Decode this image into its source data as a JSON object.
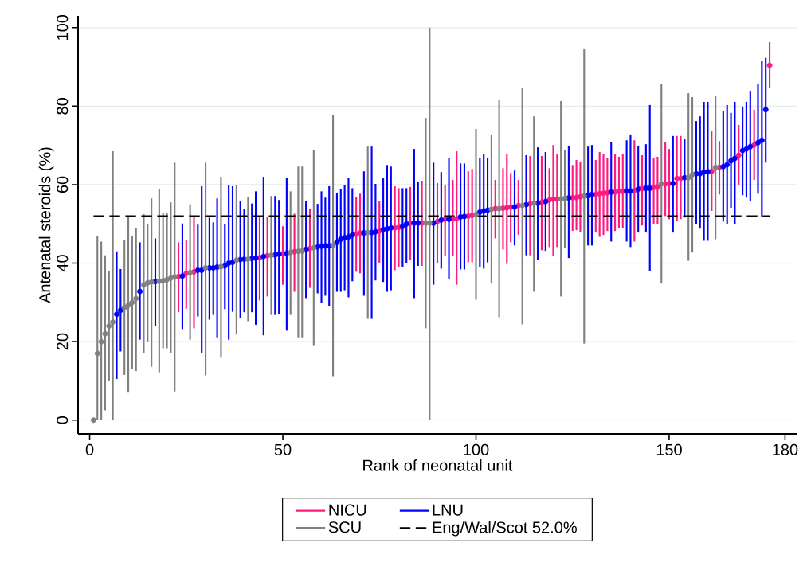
{
  "chart_data": {
    "type": "scatter",
    "xlabel": "Rank of neonatal unit",
    "ylabel": "Antenatal steroids (%)",
    "xlim": [
      -3,
      183
    ],
    "ylim": [
      -3.5,
      103
    ],
    "xticks": [
      0,
      50,
      100,
      150,
      180
    ],
    "yticks": [
      0,
      20,
      40,
      60,
      80,
      100
    ],
    "grid": "y",
    "marker": "circle",
    "legend": "bottom",
    "ref_lines": [
      {
        "axis": "y",
        "value": 52,
        "label": "Eng/Wal/Scot 52.0%",
        "color": "#000000",
        "line_style": "dashed"
      }
    ],
    "series": [
      {
        "name": "NICU",
        "color": "#ff1a80",
        "x": [
          23,
          25,
          27,
          44,
          46,
          50,
          53,
          57,
          69,
          70,
          75,
          79,
          80,
          83,
          86,
          90,
          92,
          94,
          95,
          98,
          99,
          105,
          107,
          108,
          109,
          111,
          114,
          117,
          119,
          120,
          121,
          125,
          126,
          127,
          131,
          132,
          133,
          134,
          136,
          137,
          138,
          141,
          143,
          146,
          147,
          149,
          150,
          152,
          153,
          161,
          163,
          168,
          172,
          176
        ],
        "values": [
          36.6,
          37.4,
          37.8,
          41.4,
          41.9,
          42.4,
          42.9,
          43.7,
          47.4,
          47.7,
          48.2,
          49,
          49.1,
          50.2,
          50.2,
          50.6,
          51.2,
          51.3,
          51.3,
          52,
          52.2,
          53.9,
          54,
          54.1,
          54.3,
          54.7,
          55.1,
          55.5,
          56.1,
          56.3,
          56.3,
          56.7,
          56.7,
          56.9,
          57.5,
          57.7,
          57.8,
          57.9,
          58.1,
          58.3,
          58.3,
          58.5,
          59,
          59.3,
          59.4,
          60.2,
          60.3,
          61.6,
          61.6,
          63.4,
          64.4,
          67.5,
          70.1,
          90.4
        ],
        "errors": [
          [
            27.5,
            45.3
          ],
          [
            28.4,
            46
          ],
          [
            23.4,
            51.8
          ],
          [
            30.5,
            51.8
          ],
          [
            31.5,
            51.8
          ],
          [
            34.5,
            49.4
          ],
          [
            32.7,
            52.6
          ],
          [
            33.7,
            53.7
          ],
          [
            37.8,
            56.9
          ],
          [
            37.4,
            57.7
          ],
          [
            40,
            55.9
          ],
          [
            38.2,
            59.6
          ],
          [
            39,
            59.1
          ],
          [
            40.8,
            59.4
          ],
          [
            39.3,
            61
          ],
          [
            40,
            60.4
          ],
          [
            41.9,
            59.9
          ],
          [
            41.9,
            61.2
          ],
          [
            34.5,
            68.5
          ],
          [
            40.2,
            63.4
          ],
          [
            40.2,
            64
          ],
          [
            46.3,
            61.2
          ],
          [
            43.5,
            64.2
          ],
          [
            39.8,
            67.7
          ],
          [
            45.3,
            63
          ],
          [
            47.2,
            61.2
          ],
          [
            42,
            67.3
          ],
          [
            43.3,
            67.3
          ],
          [
            44.1,
            64.2
          ],
          [
            41.9,
            70.1
          ],
          [
            44.1,
            67.7
          ],
          [
            48.2,
            65
          ],
          [
            48.4,
            66.3
          ],
          [
            48,
            65.9
          ],
          [
            47.8,
            66.3
          ],
          [
            46.7,
            68.3
          ],
          [
            47.2,
            67.7
          ],
          [
            48.2,
            66.7
          ],
          [
            48.2,
            67.9
          ],
          [
            49,
            67.1
          ],
          [
            49,
            67.7
          ],
          [
            45.5,
            71.3
          ],
          [
            49.6,
            67.5
          ],
          [
            50,
            66.7
          ],
          [
            50,
            67.1
          ],
          [
            52,
            70.9
          ],
          [
            51.2,
            69.1
          ],
          [
            50.8,
            72.4
          ],
          [
            51.2,
            72.4
          ],
          [
            53.3,
            73.6
          ],
          [
            57.5,
            71.1
          ],
          [
            59.8,
            75.2
          ],
          [
            61.2,
            79.1
          ],
          [
            84.6,
            96.3
          ]
        ]
      },
      {
        "name": "LNU",
        "color": "#0000ff",
        "x": [
          7,
          8,
          13,
          17,
          24,
          28,
          29,
          31,
          32,
          33,
          35,
          36,
          37,
          39,
          40,
          42,
          43,
          45,
          48,
          49,
          51,
          56,
          59,
          60,
          61,
          62,
          64,
          65,
          66,
          67,
          68,
          71,
          73,
          74,
          76,
          77,
          78,
          81,
          82,
          84,
          85,
          89,
          91,
          93,
          96,
          97,
          101,
          102,
          103,
          110,
          113,
          116,
          118,
          124,
          129,
          130,
          135,
          139,
          140,
          142,
          144,
          145,
          151,
          154,
          157,
          158,
          159,
          160,
          164,
          165,
          166,
          167,
          169,
          170,
          171,
          173,
          174,
          175
        ],
        "values": [
          27,
          28,
          32.8,
          35.3,
          36.7,
          38.2,
          38.2,
          38.8,
          38.8,
          39,
          39.3,
          40,
          40.2,
          40.9,
          41,
          41.2,
          41.3,
          41.7,
          42.1,
          42.3,
          42.5,
          43.5,
          44.1,
          44.3,
          44.4,
          44.4,
          45.3,
          46.1,
          46.5,
          46.7,
          47.2,
          47.7,
          47.8,
          48,
          48.6,
          48.8,
          49,
          49.4,
          50,
          50.2,
          50.2,
          50.2,
          51,
          51.2,
          51.8,
          51.9,
          53,
          53.3,
          53.5,
          54.3,
          54.9,
          55.3,
          55.7,
          56.6,
          57.2,
          57.5,
          58.1,
          58.4,
          58.4,
          58.9,
          59.1,
          59.1,
          60.3,
          61.8,
          62.8,
          62.8,
          63.2,
          63.3,
          64.6,
          65.1,
          66.1,
          66.7,
          68.7,
          69.1,
          69.7,
          70.7,
          71.3,
          79.1
        ],
        "errors": [
          [
            10.5,
            43
          ],
          [
            17.5,
            38.5
          ],
          [
            20.5,
            45.3
          ],
          [
            24,
            46.3
          ],
          [
            23.2,
            50.1
          ],
          [
            26.4,
            49.8
          ],
          [
            17,
            59.6
          ],
          [
            25.6,
            51.6
          ],
          [
            26.8,
            50.4
          ],
          [
            21.1,
            56.5
          ],
          [
            28.3,
            50
          ],
          [
            20.5,
            59.8
          ],
          [
            27.6,
            59.6
          ],
          [
            26,
            55.9
          ],
          [
            27.5,
            53.9
          ],
          [
            27.5,
            55.2
          ],
          [
            24.3,
            58.3
          ],
          [
            21.6,
            62
          ],
          [
            26.8,
            57.1
          ],
          [
            27,
            56.1
          ],
          [
            22.8,
            61.8
          ],
          [
            31.1,
            55.9
          ],
          [
            32.3,
            55.1
          ],
          [
            29.9,
            58.3
          ],
          [
            31.7,
            56.7
          ],
          [
            29.1,
            59.6
          ],
          [
            32.7,
            57.9
          ],
          [
            32.7,
            58.9
          ],
          [
            33.1,
            59.9
          ],
          [
            31.3,
            61.8
          ],
          [
            35.4,
            59.1
          ],
          [
            31.7,
            63.4
          ],
          [
            25.8,
            69.7
          ],
          [
            35.6,
            60.2
          ],
          [
            35.2,
            61.6
          ],
          [
            32.7,
            65
          ],
          [
            33.1,
            64.6
          ],
          [
            39,
            59.1
          ],
          [
            40,
            59.1
          ],
          [
            31.1,
            69.1
          ],
          [
            39.3,
            60.6
          ],
          [
            34.5,
            65.6
          ],
          [
            38.6,
            63.2
          ],
          [
            36,
            66.7
          ],
          [
            38.4,
            65.4
          ],
          [
            38.4,
            65.4
          ],
          [
            39,
            66.7
          ],
          [
            38.6,
            67.9
          ],
          [
            40.2,
            66.7
          ],
          [
            44.5,
            63.6
          ],
          [
            42,
            67.5
          ],
          [
            40.8,
            69.5
          ],
          [
            43.1,
            68.3
          ],
          [
            41.3,
            69.9
          ],
          [
            44.5,
            69.7
          ],
          [
            44.5,
            70.1
          ],
          [
            45.5,
            70.9
          ],
          [
            45.5,
            71.3
          ],
          [
            44.1,
            72.8
          ],
          [
            47.8,
            69.9
          ],
          [
            47.8,
            70.3
          ],
          [
            38,
            80.3
          ],
          [
            47.8,
            72.4
          ],
          [
            51.6,
            71.7
          ],
          [
            50,
            76.2
          ],
          [
            48.8,
            77.4
          ],
          [
            45.7,
            81.1
          ],
          [
            45.7,
            81.1
          ],
          [
            50.6,
            78.7
          ],
          [
            50,
            80.3
          ],
          [
            54.1,
            78.3
          ],
          [
            50,
            81.1
          ],
          [
            57.3,
            79.9
          ],
          [
            56.7,
            81.1
          ],
          [
            55.9,
            83.9
          ],
          [
            57.7,
            85.6
          ],
          [
            51.8,
            91.5
          ],
          [
            65.6,
            92.3
          ]
        ]
      },
      {
        "name": "SCU",
        "color": "#808080",
        "x": [
          1,
          2,
          3,
          4,
          5,
          6,
          9,
          10,
          11,
          12,
          14,
          15,
          16,
          18,
          19,
          20,
          21,
          22,
          26,
          30,
          34,
          38,
          41,
          47,
          52,
          54,
          55,
          58,
          63,
          72,
          87,
          88,
          100,
          104,
          106,
          112,
          115,
          122,
          123,
          128,
          148,
          155,
          156,
          162
        ],
        "values": [
          0,
          17,
          20,
          22,
          24,
          25,
          28.7,
          29.3,
          30,
          31,
          34.5,
          35,
          35.2,
          35.4,
          35.5,
          35.8,
          36.2,
          36.5,
          37.6,
          38.8,
          39.1,
          40.8,
          41,
          42,
          42.7,
          43,
          43.1,
          43.9,
          44.5,
          47.8,
          50.2,
          50.2,
          52.4,
          53.7,
          53.9,
          54.7,
          55.3,
          56.4,
          56.5,
          57.1,
          60.2,
          61.8,
          62.6,
          64.4
        ],
        "errors": [
          null,
          [
            0,
            47
          ],
          [
            0,
            45.5
          ],
          [
            2.5,
            42
          ],
          [
            10,
            38
          ],
          [
            0,
            68.5
          ],
          [
            11.5,
            46
          ],
          [
            7,
            52
          ],
          [
            13,
            47
          ],
          [
            12.5,
            49
          ],
          [
            17,
            52.5
          ],
          [
            20,
            50
          ],
          [
            13.6,
            56.5
          ],
          [
            12.2,
            58.8
          ],
          [
            18.3,
            52.8
          ],
          [
            18.3,
            52.8
          ],
          [
            17,
            55.5
          ],
          [
            7.3,
            65.6
          ],
          [
            20.5,
            55
          ],
          [
            11.4,
            65.6
          ],
          [
            15.9,
            62
          ],
          [
            21.8,
            59.8
          ],
          [
            25.2,
            56.9
          ],
          [
            26.8,
            57.1
          ],
          [
            26.8,
            58.3
          ],
          [
            21.1,
            64.6
          ],
          [
            21.1,
            64.6
          ],
          [
            18.9,
            68.9
          ],
          [
            11.2,
            77.8
          ],
          [
            25.8,
            69.7
          ],
          [
            23.4,
            77
          ],
          [
            0,
            100
          ],
          [
            30.7,
            74.2
          ],
          [
            34.8,
            72.6
          ],
          [
            26.2,
            81.5
          ],
          [
            24.4,
            84.6
          ],
          [
            32.7,
            77.4
          ],
          [
            31.5,
            81.3
          ],
          [
            43.9,
            68.9
          ],
          [
            19.5,
            94.7
          ],
          [
            34.8,
            85.6
          ],
          [
            40.6,
            83.3
          ],
          [
            42.7,
            82.3
          ],
          [
            46.1,
            82.5
          ]
        ]
      }
    ]
  }
}
